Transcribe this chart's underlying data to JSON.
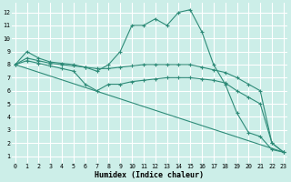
{
  "xlabel": "Humidex (Indice chaleur)",
  "bg_color": "#cceee8",
  "grid_color": "#ffffff",
  "line_color": "#2e8b78",
  "x_ticks": [
    0,
    1,
    2,
    3,
    4,
    5,
    6,
    7,
    8,
    9,
    10,
    11,
    12,
    13,
    14,
    15,
    16,
    17,
    18,
    19,
    20,
    21,
    22,
    23
  ],
  "y_ticks": [
    1,
    2,
    3,
    4,
    5,
    6,
    7,
    8,
    9,
    10,
    11,
    12
  ],
  "xlim": [
    -0.3,
    23.3
  ],
  "ylim": [
    0.5,
    12.7
  ],
  "series": [
    {
      "x": [
        0,
        1,
        2,
        3,
        4,
        5,
        6,
        7,
        8,
        9,
        10,
        11,
        12,
        13,
        14,
        15,
        16,
        17,
        18,
        19,
        20,
        21,
        22,
        23
      ],
      "y": [
        8.0,
        9.0,
        8.5,
        8.2,
        8.1,
        8.0,
        7.8,
        7.5,
        8.0,
        9.0,
        11.0,
        11.0,
        11.5,
        11.0,
        12.0,
        12.2,
        10.5,
        8.0,
        6.5,
        4.3,
        2.8,
        2.5,
        1.5,
        1.3
      ],
      "marker": true
    },
    {
      "x": [
        0,
        1,
        2,
        3,
        4,
        5,
        6,
        7,
        8,
        9,
        10,
        11,
        12,
        13,
        14,
        15,
        16,
        17,
        18,
        19,
        20,
        21,
        22,
        23
      ],
      "y": [
        8.0,
        8.5,
        8.3,
        8.1,
        8.0,
        7.9,
        7.8,
        7.7,
        7.7,
        7.8,
        7.9,
        8.0,
        8.0,
        8.0,
        8.0,
        8.0,
        7.8,
        7.6,
        7.4,
        7.0,
        6.5,
        6.0,
        2.0,
        1.3
      ],
      "marker": true
    },
    {
      "x": [
        0,
        1,
        2,
        3,
        4,
        5,
        6,
        7,
        8,
        9,
        10,
        11,
        12,
        13,
        14,
        15,
        16,
        17,
        18,
        19,
        20,
        21,
        22,
        23
      ],
      "y": [
        8.0,
        8.3,
        8.1,
        7.9,
        7.7,
        7.5,
        6.5,
        6.0,
        6.5,
        6.5,
        6.7,
        6.8,
        6.9,
        7.0,
        7.0,
        7.0,
        6.9,
        6.8,
        6.6,
        6.0,
        5.5,
        5.0,
        2.0,
        1.3
      ],
      "marker": true
    },
    {
      "x": [
        0,
        23
      ],
      "y": [
        8.0,
        1.3
      ],
      "marker": false
    }
  ]
}
